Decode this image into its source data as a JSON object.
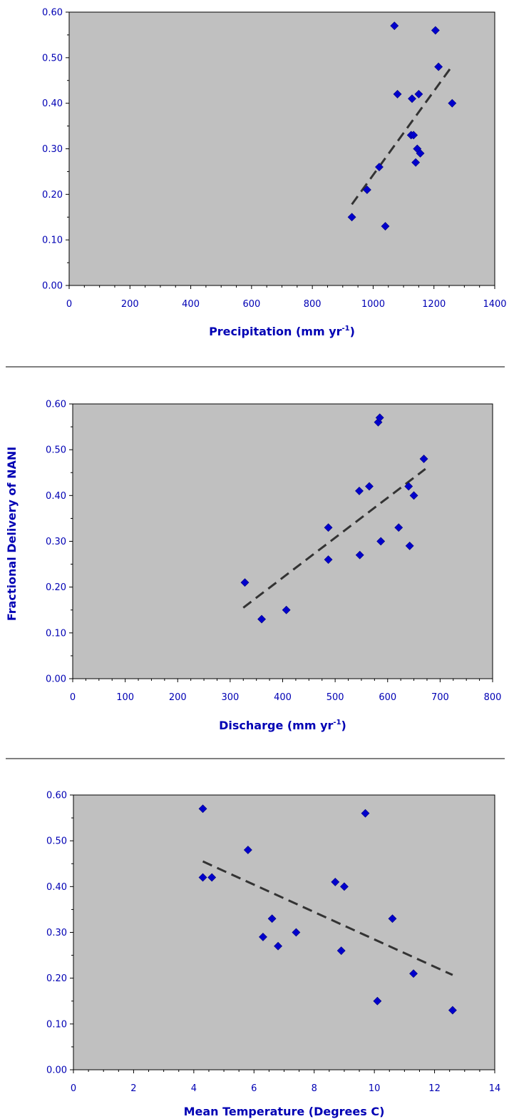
{
  "colors": {
    "plot_bg": "#c0c0c0",
    "point": "#0000cc",
    "trend": "#333333",
    "label": "#0000b4",
    "axis": "#000000"
  },
  "shared_ylabel": "Fractional Delivery of NANI",
  "chart_data": [
    {
      "type": "scatter",
      "xlabel": {
        "main": "Precipitation (mm yr",
        "sup": "-1",
        "end": ")"
      },
      "xlim": [
        0,
        1400
      ],
      "ylim": [
        0,
        0.6
      ],
      "x_ticks": [
        "0",
        "200",
        "400",
        "600",
        "800",
        "1000",
        "1200",
        "1400"
      ],
      "y_ticks": [
        "0.00",
        "0.10",
        "0.20",
        "0.30",
        "0.40",
        "0.50",
        "0.60"
      ],
      "points": [
        [
          930,
          0.15
        ],
        [
          980,
          0.21
        ],
        [
          1020,
          0.26
        ],
        [
          1040,
          0.13
        ],
        [
          1070,
          0.57
        ],
        [
          1080,
          0.42
        ],
        [
          1125,
          0.33
        ],
        [
          1128,
          0.41
        ],
        [
          1133,
          0.33
        ],
        [
          1140,
          0.27
        ],
        [
          1145,
          0.3
        ],
        [
          1150,
          0.42
        ],
        [
          1155,
          0.29
        ],
        [
          1205,
          0.56
        ],
        [
          1215,
          0.48
        ],
        [
          1260,
          0.4
        ]
      ],
      "trend": [
        [
          930,
          0.178
        ],
        [
          1260,
          0.482
        ]
      ],
      "grid": false
    },
    {
      "type": "scatter",
      "xlabel": {
        "main": "Discharge (mm yr",
        "sup": "-1",
        "end": ")"
      },
      "xlim": [
        0,
        800
      ],
      "ylim": [
        0,
        0.6
      ],
      "x_ticks": [
        "0",
        "100",
        "200",
        "300",
        "400",
        "500",
        "600",
        "700",
        "800"
      ],
      "y_ticks": [
        "0.00",
        "0.10",
        "0.20",
        "0.30",
        "0.40",
        "0.50",
        "0.60"
      ],
      "points": [
        [
          328,
          0.21
        ],
        [
          360,
          0.13
        ],
        [
          407,
          0.15
        ],
        [
          487,
          0.33
        ],
        [
          487,
          0.26
        ],
        [
          546,
          0.41
        ],
        [
          547,
          0.27
        ],
        [
          565,
          0.42
        ],
        [
          582,
          0.56
        ],
        [
          585,
          0.57
        ],
        [
          587,
          0.3
        ],
        [
          621,
          0.33
        ],
        [
          640,
          0.42
        ],
        [
          642,
          0.29
        ],
        [
          650,
          0.4
        ],
        [
          669,
          0.48
        ]
      ],
      "trend": [
        [
          325,
          0.155
        ],
        [
          672,
          0.458
        ]
      ],
      "grid": false
    },
    {
      "type": "scatter",
      "xlabel": {
        "main": "Mean Temperature (Degrees C)",
        "sup": "",
        "end": ""
      },
      "xlim": [
        0,
        14
      ],
      "ylim": [
        0,
        0.6
      ],
      "x_ticks": [
        "0",
        "2",
        "4",
        "6",
        "8",
        "10",
        "12",
        "14"
      ],
      "y_ticks": [
        "0.00",
        "0.10",
        "0.20",
        "0.30",
        "0.40",
        "0.50",
        "0.60"
      ],
      "points": [
        [
          4.3,
          0.57
        ],
        [
          4.3,
          0.42
        ],
        [
          4.6,
          0.42
        ],
        [
          5.8,
          0.48
        ],
        [
          6.3,
          0.29
        ],
        [
          6.6,
          0.33
        ],
        [
          6.8,
          0.27
        ],
        [
          7.4,
          0.3
        ],
        [
          8.7,
          0.41
        ],
        [
          8.9,
          0.26
        ],
        [
          9.0,
          0.4
        ],
        [
          9.7,
          0.56
        ],
        [
          10.1,
          0.15
        ],
        [
          10.6,
          0.33
        ],
        [
          11.3,
          0.21
        ],
        [
          12.6,
          0.13
        ]
      ],
      "trend": [
        [
          4.3,
          0.455
        ],
        [
          12.6,
          0.207
        ]
      ],
      "grid": false
    }
  ]
}
